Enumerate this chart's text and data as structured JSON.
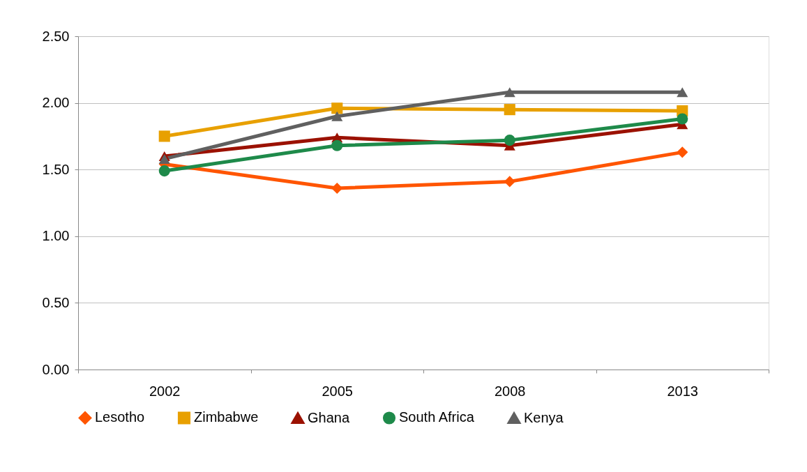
{
  "chart_data": {
    "type": "line",
    "categories": [
      "2002",
      "2005",
      "2008",
      "2013"
    ],
    "series": [
      {
        "name": "Lesotho",
        "color": "#ff5500",
        "marker": "diamond",
        "values": [
          1.54,
          1.36,
          1.41,
          1.63
        ]
      },
      {
        "name": "Zimbabwe",
        "color": "#e8a000",
        "marker": "square",
        "values": [
          1.75,
          1.96,
          1.95,
          1.94
        ]
      },
      {
        "name": "Ghana",
        "color": "#9b1100",
        "marker": "triangle",
        "values": [
          1.6,
          1.74,
          1.68,
          1.84
        ]
      },
      {
        "name": "South Africa",
        "color": "#1e8a4a",
        "marker": "circle",
        "values": [
          1.49,
          1.68,
          1.72,
          1.88
        ]
      },
      {
        "name": "Kenya",
        "color": "#606060",
        "marker": "triangle",
        "values": [
          1.58,
          1.9,
          2.08,
          2.08
        ]
      }
    ],
    "ylim": [
      0,
      2.5
    ],
    "yticks": [
      {
        "value": 0,
        "label": "0.00"
      },
      {
        "value": 0.5,
        "label": "0.50"
      },
      {
        "value": 1,
        "label": "1.00"
      },
      {
        "value": 1.5,
        "label": "1.50"
      },
      {
        "value": 2,
        "label": "2.00"
      },
      {
        "value": 2.5,
        "label": "2.50"
      }
    ],
    "grid": "y",
    "legend": "bottom"
  }
}
